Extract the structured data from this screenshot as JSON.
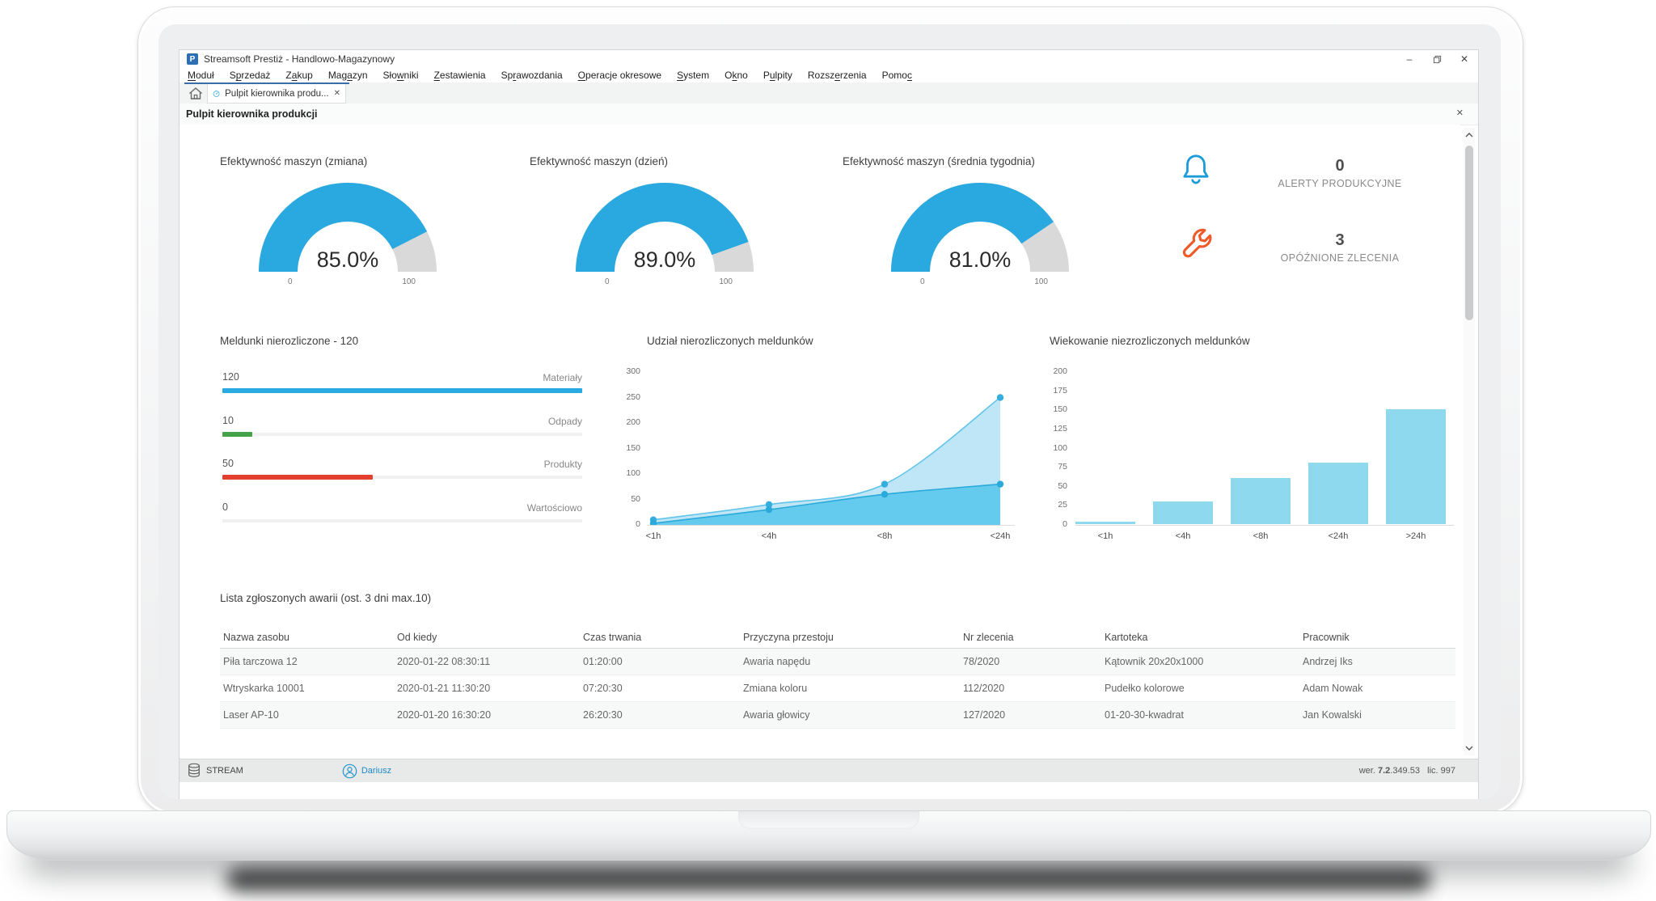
{
  "window": {
    "title": "Streamsoft Prestiż - Handlowo-Magazynowy",
    "app_icon_letter": "P",
    "controls": {
      "minimize_glyph": "–",
      "restore_icon": "restore-icon",
      "close_glyph": "✕"
    }
  },
  "menu": {
    "items": [
      {
        "pre": "",
        "accel": "M",
        "post": "oduł"
      },
      {
        "pre": "S",
        "accel": "p",
        "post": "rzedaż"
      },
      {
        "pre": "Z",
        "accel": "a",
        "post": "kup"
      },
      {
        "pre": "Mag",
        "accel": "a",
        "post": "zyn"
      },
      {
        "pre": "Sło",
        "accel": "w",
        "post": "niki"
      },
      {
        "pre": "",
        "accel": "Z",
        "post": "estawienia"
      },
      {
        "pre": "Sp",
        "accel": "r",
        "post": "awozdania"
      },
      {
        "pre": "",
        "accel": "O",
        "post": "peracje okresowe"
      },
      {
        "pre": "",
        "accel": "S",
        "post": "ystem"
      },
      {
        "pre": "O",
        "accel": "k",
        "post": "no"
      },
      {
        "pre": "P",
        "accel": "u",
        "post": "lpity"
      },
      {
        "pre": "Rozsz",
        "accel": "e",
        "post": "rzenia"
      },
      {
        "pre": "Pomo",
        "accel": "c",
        "post": ""
      }
    ]
  },
  "tabs": {
    "active": {
      "icon": "gauge-icon",
      "label": "Pulpit kierownika produ...",
      "close": "✕"
    }
  },
  "panel": {
    "title": "Pulpit kierownika produkcji",
    "close": "✕"
  },
  "gauges": [
    {
      "title": "Efektywność maszyn (zmiana)",
      "value": 85.0,
      "display": "85.0%",
      "min": "0",
      "max": "100"
    },
    {
      "title": "Efektywność maszyn (dzień)",
      "value": 89.0,
      "display": "89.0%",
      "min": "0",
      "max": "100"
    },
    {
      "title": "Efektywność maszyn (średnia tygodnia)",
      "value": 81.0,
      "display": "81.0%",
      "min": "0",
      "max": "100"
    }
  ],
  "gauge_colors": {
    "fill": "#29a9e0",
    "rest": "#d9d9d9"
  },
  "alerts": [
    {
      "icon": "bell-icon",
      "count": "0",
      "label": "ALERTY PRODUKCYJNE",
      "color": "#1b9cd9"
    },
    {
      "icon": "wrench-icon",
      "count": "3",
      "label": "OPÓŹNIONE ZLECENIA",
      "color": "#f05a28"
    }
  ],
  "chart_data": [
    {
      "type": "bar",
      "orientation": "horizontal",
      "title": "Meldunki nierozliczone - 120",
      "categories": [
        "Materiały",
        "Odpady",
        "Produkty",
        "Wartościowo"
      ],
      "values": [
        120,
        10,
        50,
        0
      ],
      "colors": [
        "#29abe2",
        "#44a248",
        "#e2402d",
        "#f0f0f0"
      ],
      "xlim": [
        0,
        120
      ],
      "grid": false,
      "legend": "none"
    },
    {
      "type": "area",
      "title": "Udział nierozliczonych meldunków",
      "x": [
        "<1h",
        "<4h",
        "<8h",
        "<24h"
      ],
      "series": [
        {
          "name": "series-1",
          "values": [
            10,
            40,
            80,
            250
          ],
          "fill": "#b3e2f6",
          "line": "#62c4ea",
          "dot": "#35aede"
        },
        {
          "name": "series-2",
          "values": [
            3,
            30,
            60,
            80
          ],
          "fill": "#55c5ec",
          "line": "#2ba9da",
          "dot": "#2ba9da"
        }
      ],
      "ylim": [
        0,
        300
      ],
      "yticks": [
        0,
        50,
        100,
        150,
        200,
        250,
        300
      ],
      "grid": false,
      "legend": "none"
    },
    {
      "type": "bar",
      "title": "Wiekowanie niezrozliczonych meldunków",
      "categories": [
        "<1h",
        "<4h",
        "<8h",
        "<24h",
        ">24h"
      ],
      "values": [
        3,
        30,
        60,
        80,
        150
      ],
      "color": "#8fd9ee",
      "ylim": [
        0,
        200
      ],
      "yticks": [
        0,
        25,
        50,
        75,
        100,
        125,
        150,
        175,
        200
      ],
      "grid": false,
      "legend": "none"
    }
  ],
  "failures_table": {
    "title": "Lista zgłoszonych awarii (ost. 3 dni max.10)",
    "columns": [
      "Nazwa zasobu",
      "Od kiedy",
      "Czas trwania",
      "Przyczyna przestoju",
      "Nr zlecenia",
      "Kartoteka",
      "Pracownik"
    ],
    "rows": [
      [
        "Piła tarczowa 12",
        "2020-01-22 08:30:11",
        "01:20:00",
        "Awaria napędu",
        "78/2020",
        "Kątownik 20x20x1000",
        "Andrzej Iks"
      ],
      [
        "Wtryskarka 10001",
        "2020-01-21 11:30:20",
        "07:20:30",
        "Zmiana koloru",
        "112/2020",
        "Pudełko kolorowe",
        "Adam Nowak"
      ],
      [
        "Laser AP-10",
        "2020-01-20 16:30:20",
        "26:20:30",
        "Awaria głowicy",
        "127/2020",
        "01-20-30-kwadrat",
        "Jan Kowalski"
      ]
    ]
  },
  "statusbar": {
    "db_label": "STREAM",
    "user": "Dariusz",
    "version_prefix": "wer. ",
    "version_bold": "7.2",
    "version_rest": ".349.53",
    "license": "lic. 997"
  }
}
